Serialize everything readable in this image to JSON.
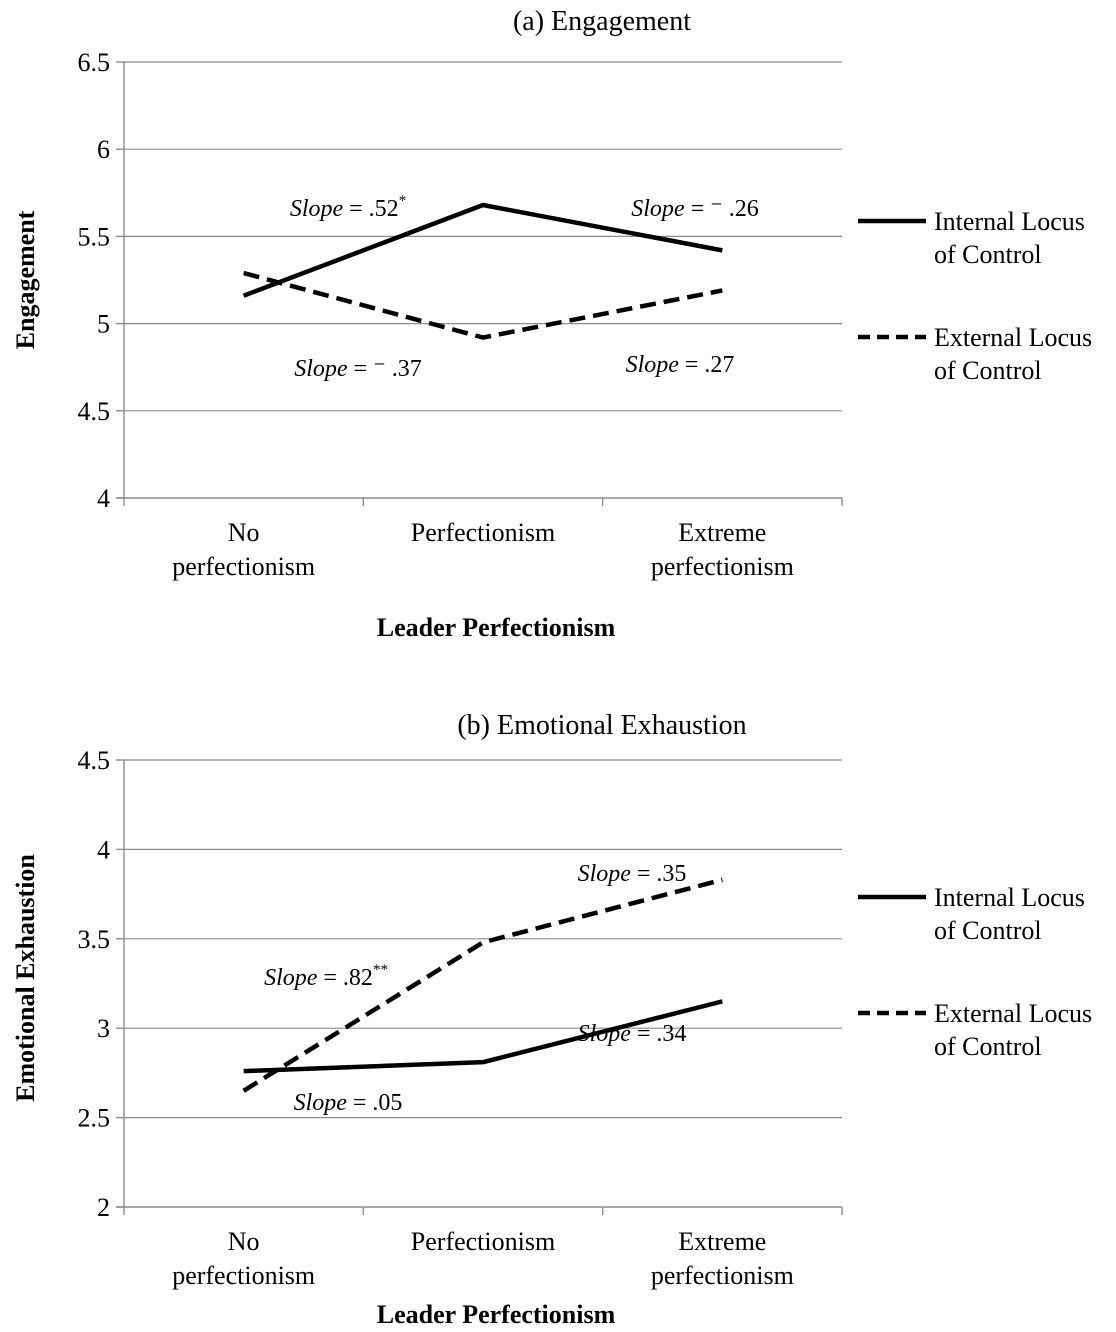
{
  "chart_data": [
    {
      "type": "line",
      "title": "(a) Engagement",
      "xlabel": "Leader Perfectionism",
      "ylabel": "Engagement",
      "categories": [
        "No perfectionism",
        "Perfectionism",
        "Extreme perfectionism"
      ],
      "ylim": [
        4,
        6.5
      ],
      "yticks": [
        "4",
        "4.5",
        "5",
        "5.5",
        "6",
        "6.5"
      ],
      "grid": true,
      "legend_position": "right",
      "series": [
        {
          "name": "Internal Locus of Control",
          "style": "solid",
          "values": [
            5.16,
            5.68,
            5.42
          ]
        },
        {
          "name": "External Locus of Control",
          "style": "dashed",
          "values": [
            5.29,
            4.92,
            5.19
          ]
        }
      ],
      "annotations": [
        {
          "label": "Slope",
          "rest": " = .52",
          "sup": "*"
        },
        {
          "label": "Slope",
          "rest": " = ⁻ .26",
          "sup": ""
        },
        {
          "label": "Slope",
          "rest": " = ⁻ .37",
          "sup": ""
        },
        {
          "label": "Slope",
          "rest": " = .27",
          "sup": ""
        }
      ]
    },
    {
      "type": "line",
      "title": "(b) Emotional Exhaustion",
      "xlabel": "Leader Perfectionism",
      "ylabel": "Emotional Exhaustion",
      "categories": [
        "No perfectionism",
        "Perfectionism",
        "Extreme perfectionism"
      ],
      "ylim": [
        2,
        4.5
      ],
      "yticks": [
        "2",
        "2.5",
        "3",
        "3.5",
        "4",
        "4.5"
      ],
      "grid": true,
      "legend_position": "right",
      "series": [
        {
          "name": "Internal Locus of Control",
          "style": "solid",
          "values": [
            2.76,
            2.81,
            3.15
          ]
        },
        {
          "name": "External Locus of Control",
          "style": "dashed",
          "values": [
            2.65,
            3.48,
            3.83
          ]
        }
      ],
      "annotations": [
        {
          "label": "Slope",
          "rest": " = .35",
          "sup": ""
        },
        {
          "label": "Slope",
          "rest": " = .82",
          "sup": "**"
        },
        {
          "label": "Slope",
          "rest": " = .34",
          "sup": ""
        },
        {
          "label": "Slope",
          "rest": " = .05",
          "sup": ""
        }
      ]
    }
  ]
}
